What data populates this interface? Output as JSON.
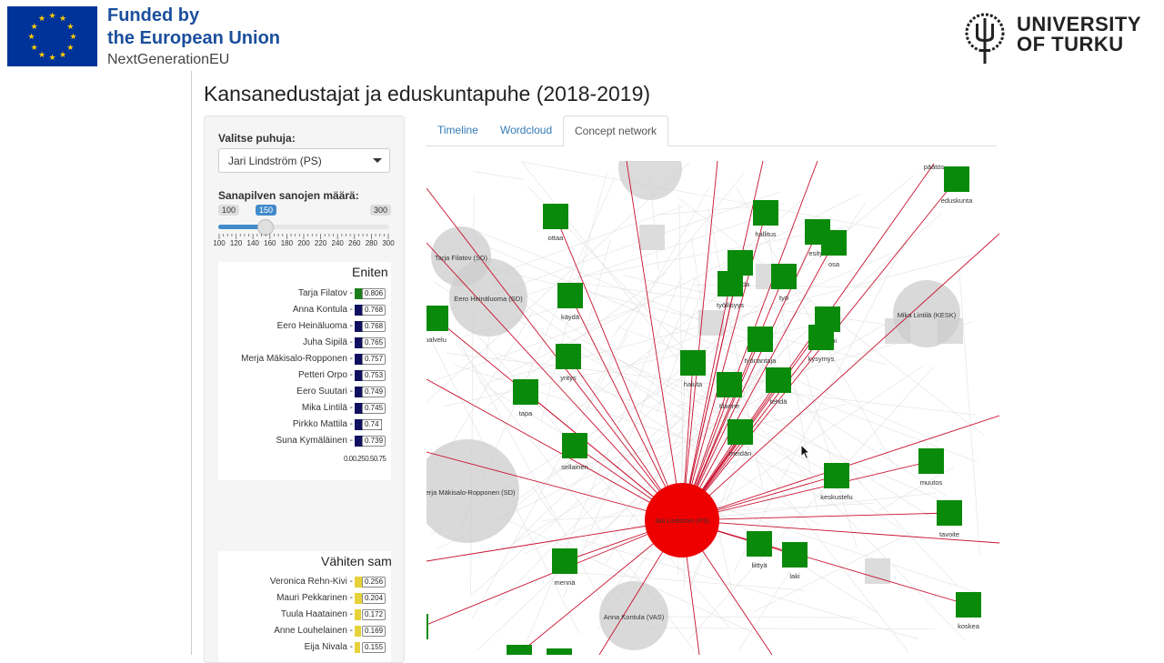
{
  "banner": {
    "eu_line1": "Funded by",
    "eu_line2": "the European Union",
    "eu_line3": "NextGenerationEU",
    "utu_line1": "UNIVERSITY",
    "utu_line2": "OF TURKU"
  },
  "app": {
    "title": "Kansanedustajat ja eduskuntapuhe (2018-2019)"
  },
  "sidebar": {
    "speaker_label": "Valitse puhuja:",
    "speaker_value": "Jari Lindström (PS)",
    "words_label": "Sanapilven sanojen määrä:",
    "slider": {
      "min": "100",
      "max": "300",
      "value": "150",
      "ticks": [
        "100",
        "120",
        "140",
        "160",
        "180",
        "200",
        "220",
        "240",
        "260",
        "280",
        "300"
      ]
    },
    "most_similar": {
      "title": "Eniten samankaltaiset",
      "axis": "0.00.250.50.75",
      "rows": [
        {
          "name": "Tarja Filatov",
          "value": "0.806",
          "score": 0.806
        },
        {
          "name": "Anna Kontula",
          "value": "0.768",
          "score": 0.768
        },
        {
          "name": "Eero Heinäluoma",
          "value": "0.768",
          "score": 0.768
        },
        {
          "name": "Juha Sipilä",
          "value": "0.765",
          "score": 0.765
        },
        {
          "name": "Merja Mäkisalo-Ropponen",
          "value": "0.757",
          "score": 0.757
        },
        {
          "name": "Petteri Orpo",
          "value": "0.753",
          "score": 0.753
        },
        {
          "name": "Eero Suutari",
          "value": "0.749",
          "score": 0.749
        },
        {
          "name": "Mika Lintilä",
          "value": "0.745",
          "score": 0.745
        },
        {
          "name": "Pirkko Mattila",
          "value": "0.74",
          "score": 0.74
        },
        {
          "name": "Suna Kymäläinen",
          "value": "0.739",
          "score": 0.739
        }
      ]
    },
    "least_similar": {
      "title": "Vähiten samankaltaiset",
      "rows": [
        {
          "name": "Veronica Rehn-Kivi",
          "value": "0.256",
          "score": 0.256
        },
        {
          "name": "Mauri Pekkarinen",
          "value": "0.204",
          "score": 0.204
        },
        {
          "name": "Tuula Haatainen",
          "value": "0.172",
          "score": 0.172
        },
        {
          "name": "Anne Louhelainen",
          "value": "0.169",
          "score": 0.169
        },
        {
          "name": "Eija Nivala",
          "value": "0.155",
          "score": 0.155
        }
      ]
    }
  },
  "tabs": [
    "Timeline",
    "Wordcloud",
    "Concept network"
  ],
  "active_tab": "Concept network",
  "network": {
    "center": "Jari Lindström (PS)",
    "colors": {
      "center": "#ee0000",
      "word": "#0a8a0a",
      "edge": "#c8102e",
      "speaker": "#cccccc"
    },
    "speakers": [
      "Tarja Filatov (SD)",
      "Eero Heinäluoma (SD)",
      "Mika Lintilä (KESK)",
      "Merja Mäkisalo-Ropponen (SD)",
      "Anna Kontula (VAS)"
    ],
    "words": [
      "päätös",
      "eduskunta",
      "hallitus",
      "ottaa",
      "esitys",
      "osa",
      "saada",
      "työ",
      "työllisyys",
      "käydä",
      "palvelu",
      "suomi",
      "työnantaja",
      "kysymys",
      "yritys",
      "haluta",
      "tehdä",
      "tilanne",
      "tapa",
      "meidän",
      "sellainen",
      "keskustelu",
      "muutos",
      "tavoite",
      "liittyä",
      "laki",
      "mennä",
      "koskea"
    ]
  }
}
